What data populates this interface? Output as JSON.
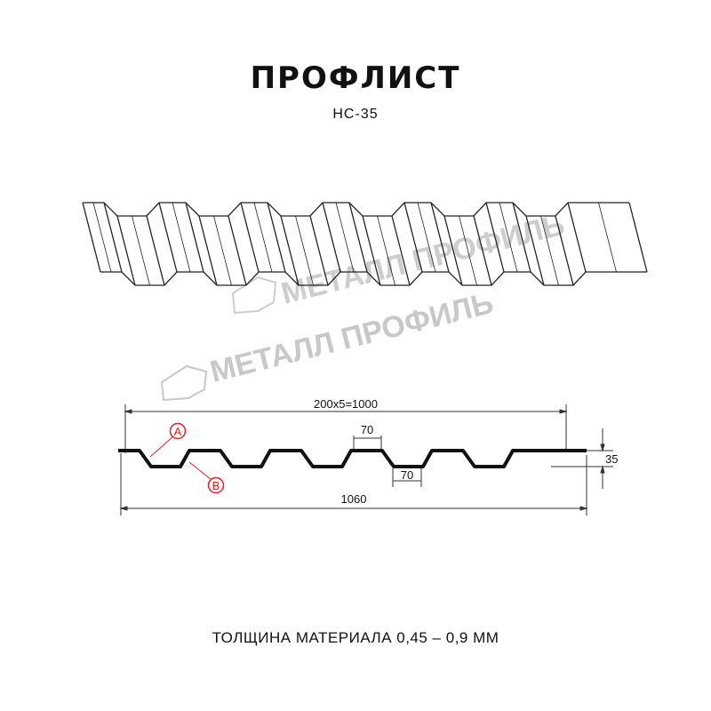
{
  "title": "ПРОФЛИСТ",
  "subtitle": "НС-35",
  "watermark": "МЕТАЛЛ ПРОФИЛЬ",
  "dimensions": {
    "pitch_total": "200x5=1000",
    "top_flat": "70",
    "bottom_flat": "70",
    "height": "35",
    "total_width": "1060"
  },
  "callouts": {
    "a": "A",
    "b": "B"
  },
  "footer": "ТОЛЩИНА МАТЕРИАЛА 0,45 – 0,9 ММ",
  "colors": {
    "profile": "#111111",
    "callout": "#e02020",
    "watermark": "#c8c8c8"
  }
}
